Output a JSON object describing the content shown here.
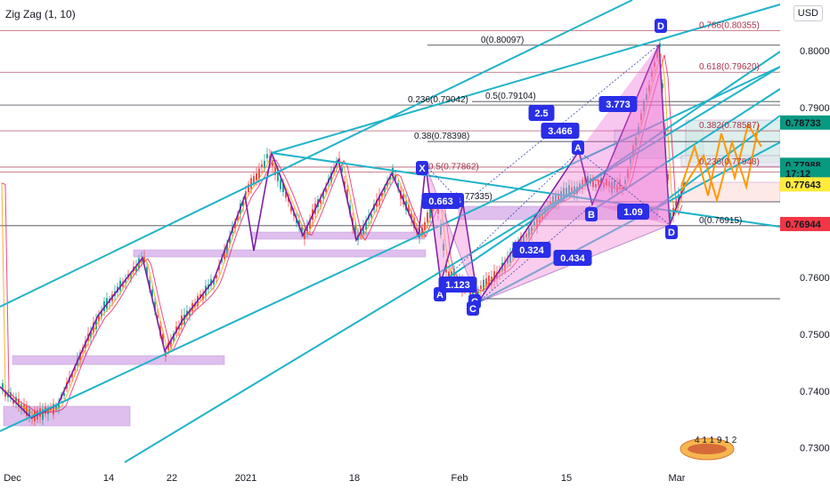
{
  "indicator_label": "Zig Zag (1, 10)",
  "currency_button": "USD",
  "chart_data": {
    "type": "candlestick",
    "title": "",
    "xlabel": "",
    "ylabel": "",
    "ylim": [
      0.7265,
      0.8105
    ],
    "y_ticks": [
      "0.80000",
      "0.79000",
      "0.78000",
      "0.77000",
      "0.76000",
      "0.75000",
      "0.74000",
      "0.73000"
    ],
    "x_ticks": [
      "Dec",
      "14",
      "22",
      "2021",
      "18",
      "Feb",
      "15",
      "Mar"
    ],
    "price_tags": [
      {
        "label": "0.78733",
        "value": 0.78733,
        "color": "#089981"
      },
      {
        "label": "0.77988",
        "value": 0.77988,
        "color": "#089981"
      },
      {
        "label": "17:12",
        "value": 0.77835,
        "color": "#089981"
      },
      {
        "label": "0.77643",
        "value": 0.77643,
        "color": "#ffeb3b"
      },
      {
        "label": "0.76944",
        "value": 0.76944,
        "color": "#f23645"
      }
    ],
    "fib_levels": [
      {
        "label": "0.786(0.80355)",
        "value": 0.80355
      },
      {
        "label": "0(0.80097)",
        "value": 0.80097
      },
      {
        "label": "0.618(0.79620)",
        "value": 0.7962
      },
      {
        "label": "0.5(0.79104)",
        "value": 0.79104
      },
      {
        "label": "0.236(0.79042)",
        "value": 0.79042
      },
      {
        "label": "0.382(0.78587)",
        "value": 0.78587
      },
      {
        "label": "0.38(0.78398)",
        "value": 0.78398
      },
      {
        "label": "0.236(0.77948)",
        "value": 0.77948
      },
      {
        "label": "0.5(0.77862)",
        "value": 0.77862
      },
      {
        "label": "0.618(0.77335)",
        "value": 0.77335
      },
      {
        "label": "0(0.76915)",
        "value": 0.76915
      }
    ],
    "pattern_points": [
      "X",
      "A",
      "B",
      "C",
      "D",
      "A",
      "B",
      "C",
      "D"
    ],
    "ratios": [
      "0.663",
      "1.123",
      "0.324",
      "0.434",
      "2.5",
      "3.466",
      "3.773",
      "1.09"
    ],
    "colors": {
      "trend_line": "#1fb3c9",
      "zigzag": "#7b1fa2",
      "pattern_fill": "#f48fda",
      "label_box": "#2a2ee6"
    }
  },
  "logo_text": "4 1 1 9 1 2"
}
